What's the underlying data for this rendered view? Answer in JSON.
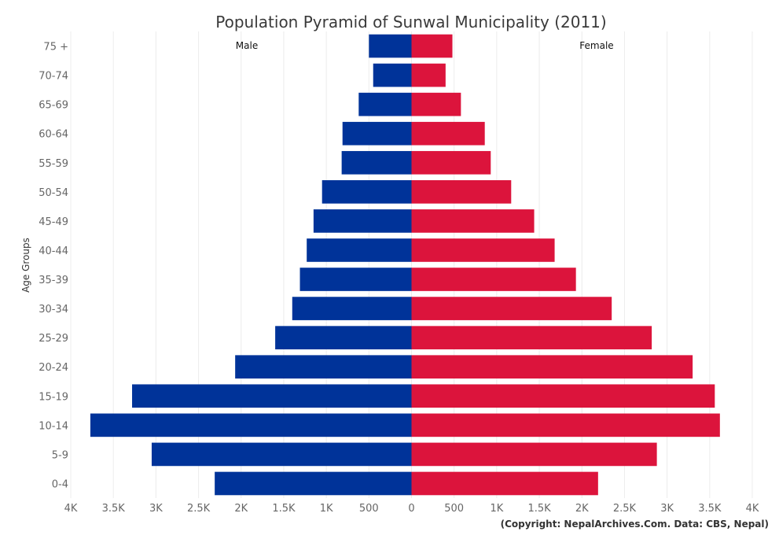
{
  "chart_data": {
    "type": "bar",
    "orientation": "horizontal-diverging",
    "title": "Population Pyramid of Sunwal Municipality (2011)",
    "ylabel": "Age Groups",
    "credit": "(Copyright: NepalArchives.Com. Data: CBS, Nepal)",
    "categories": [
      "75 +",
      "70-74",
      "65-69",
      "60-64",
      "55-59",
      "50-54",
      "45-49",
      "40-44",
      "35-39",
      "30-34",
      "25-29",
      "20-24",
      "15-19",
      "10-14",
      "5-9",
      "0-4"
    ],
    "series": [
      {
        "name": "Male",
        "color": "#003399",
        "values": [
          500,
          450,
          620,
          810,
          820,
          1050,
          1150,
          1230,
          1310,
          1400,
          1600,
          2070,
          3280,
          3770,
          3050,
          2310
        ]
      },
      {
        "name": "Female",
        "color": "#dc143c",
        "values": [
          480,
          400,
          580,
          860,
          930,
          1170,
          1440,
          1680,
          1930,
          2350,
          2820,
          3300,
          3560,
          3620,
          2880,
          2190
        ]
      }
    ],
    "xlim": [
      -4000,
      4000
    ],
    "xticks": [
      {
        "value": -4000,
        "label": "4K"
      },
      {
        "value": -3500,
        "label": "3.5K"
      },
      {
        "value": -3000,
        "label": "3K"
      },
      {
        "value": -2500,
        "label": "2.5K"
      },
      {
        "value": -2000,
        "label": "2K"
      },
      {
        "value": -1500,
        "label": "1.5K"
      },
      {
        "value": -1000,
        "label": "1K"
      },
      {
        "value": -500,
        "label": "500"
      },
      {
        "value": 0,
        "label": "0"
      },
      {
        "value": 500,
        "label": "500"
      },
      {
        "value": 1000,
        "label": "1K"
      },
      {
        "value": 1500,
        "label": "1.5K"
      },
      {
        "value": 2000,
        "label": "2K"
      },
      {
        "value": 2500,
        "label": "2.5K"
      },
      {
        "value": 3000,
        "label": "3K"
      },
      {
        "value": 3500,
        "label": "3.5K"
      },
      {
        "value": 4000,
        "label": "4K"
      }
    ],
    "grid": true,
    "legend": "none"
  }
}
